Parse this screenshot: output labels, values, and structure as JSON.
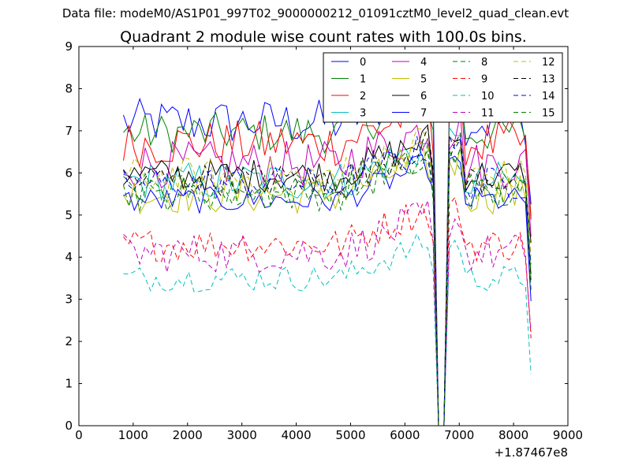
{
  "figure": {
    "suptitle": "Data file: modeM0/AS1P01_997T02_9000000212_01091cztM0_level2_quad_clean.evt",
    "title": "Quadrant 2 module wise count rates with 100.0s bins."
  },
  "chart_data": {
    "type": "line",
    "title": "Quadrant 2 module wise count rates with 100.0s bins.",
    "xlabel": "",
    "ylabel": "",
    "x_offset_label": "+1.87467e8",
    "xlim": [
      0,
      9000
    ],
    "ylim": [
      0,
      9
    ],
    "xticks": [
      0,
      1000,
      2000,
      3000,
      4000,
      5000,
      6000,
      7000,
      8000,
      9000
    ],
    "yticks": [
      0,
      1,
      2,
      3,
      4,
      5,
      6,
      7,
      8,
      9
    ],
    "grid": false,
    "legend_position": "top-right",
    "legend_columns": 4,
    "x_start": 820,
    "x_step": 100,
    "gap_zero_x": [
      6550,
      6750
    ],
    "series": [
      {
        "name": "0",
        "color": "#0000ff",
        "style": "solid",
        "base": 7.2,
        "amp": 0.35,
        "values_note": "highest baseline ~7-8"
      },
      {
        "name": "1",
        "color": "#008000",
        "style": "solid",
        "base": 6.95,
        "amp": 0.3
      },
      {
        "name": "2",
        "color": "#ff0000",
        "style": "solid",
        "base": 6.7,
        "amp": 0.35
      },
      {
        "name": "3",
        "color": "#00bfbf",
        "style": "solid",
        "base": 5.8,
        "amp": 0.3
      },
      {
        "name": "4",
        "color": "#bf00bf",
        "style": "solid",
        "base": 6.2,
        "amp": 0.35
      },
      {
        "name": "5",
        "color": "#bfbf00",
        "style": "solid",
        "base": 5.5,
        "amp": 0.3
      },
      {
        "name": "6",
        "color": "#000000",
        "style": "solid",
        "base": 5.95,
        "amp": 0.25
      },
      {
        "name": "7",
        "color": "#0000ff",
        "style": "solid",
        "base": 5.35,
        "amp": 0.2
      },
      {
        "name": "8",
        "color": "#008000",
        "style": "dashed",
        "base": 5.6,
        "amp": 0.25
      },
      {
        "name": "9",
        "color": "#ff0000",
        "style": "dashed",
        "base": 4.3,
        "amp": 0.25
      },
      {
        "name": "10",
        "color": "#00bfbf",
        "style": "dashed",
        "base": 3.5,
        "amp": 0.2
      },
      {
        "name": "11",
        "color": "#bf00bf",
        "style": "dashed",
        "base": 4.1,
        "amp": 0.3
      },
      {
        "name": "12",
        "color": "#bfbf00",
        "style": "dashed",
        "base": 5.9,
        "amp": 0.3
      },
      {
        "name": "13",
        "color": "#000000",
        "style": "dashed",
        "base": 5.85,
        "amp": 0.25
      },
      {
        "name": "14",
        "color": "#0000ff",
        "style": "dashed",
        "base": 5.75,
        "amp": 0.25
      },
      {
        "name": "15",
        "color": "#008000",
        "style": "dashed",
        "base": 5.5,
        "amp": 0.25
      }
    ]
  }
}
